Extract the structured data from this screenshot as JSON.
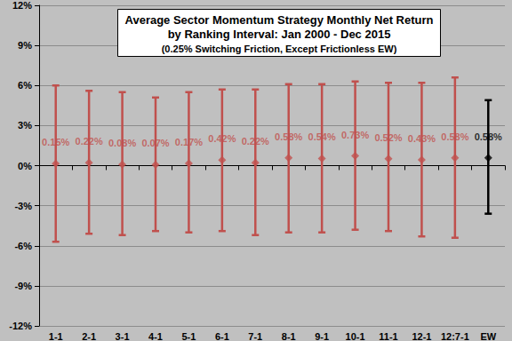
{
  "chart_data": {
    "type": "scatter",
    "title": "Average Sector Momentum Strategy Monthly Net Return\nby Ranking Interval: Jan 2000 - Dec 2015",
    "subtitle": "(0.25% Switching Friction, Except Frictionless EW)",
    "categories": [
      "1-1",
      "2-1",
      "3-1",
      "4-1",
      "5-1",
      "6-1",
      "7-1",
      "8-1",
      "9-1",
      "10-1",
      "11-1",
      "12-1",
      "12:7-1",
      "EW"
    ],
    "values": [
      0.15,
      0.22,
      0.08,
      0.07,
      0.17,
      0.42,
      0.22,
      0.58,
      0.54,
      0.73,
      0.52,
      0.43,
      0.58,
      0.58
    ],
    "value_labels": [
      "0.15%",
      "0.22%",
      "0.08%",
      "0.07%",
      "0.17%",
      "0.42%",
      "0.22%",
      "0.58%",
      "0.54%",
      "0.73%",
      "0.52%",
      "0.43%",
      "0.58%",
      "0.58%"
    ],
    "high": [
      6.0,
      5.6,
      5.5,
      5.1,
      5.5,
      5.7,
      5.7,
      6.1,
      6.1,
      6.3,
      6.2,
      6.2,
      6.6,
      4.9
    ],
    "low": [
      -5.7,
      -5.1,
      -5.2,
      -4.9,
      -5.0,
      -4.9,
      -5.2,
      -5.0,
      -5.0,
      -4.8,
      -4.9,
      -5.3,
      -5.4,
      -3.6
    ],
    "colors": [
      "#c0504d",
      "#c0504d",
      "#c0504d",
      "#c0504d",
      "#c0504d",
      "#c0504d",
      "#c0504d",
      "#c0504d",
      "#c0504d",
      "#c0504d",
      "#c0504d",
      "#c0504d",
      "#c0504d",
      "#000000"
    ],
    "marker": "diamond",
    "data_labels": true,
    "grid": true,
    "ylim": [
      -12,
      12
    ],
    "yticks": [
      {
        "value": -12,
        "label": "-12%"
      },
      {
        "value": -9,
        "label": "-9%"
      },
      {
        "value": -6,
        "label": "-6%"
      },
      {
        "value": -3,
        "label": "-3%"
      },
      {
        "value": 0,
        "label": "0%"
      },
      {
        "value": 3,
        "label": "3%"
      },
      {
        "value": 6,
        "label": "6%"
      },
      {
        "value": 9,
        "label": "9%"
      },
      {
        "value": 12,
        "label": "12%"
      }
    ]
  }
}
